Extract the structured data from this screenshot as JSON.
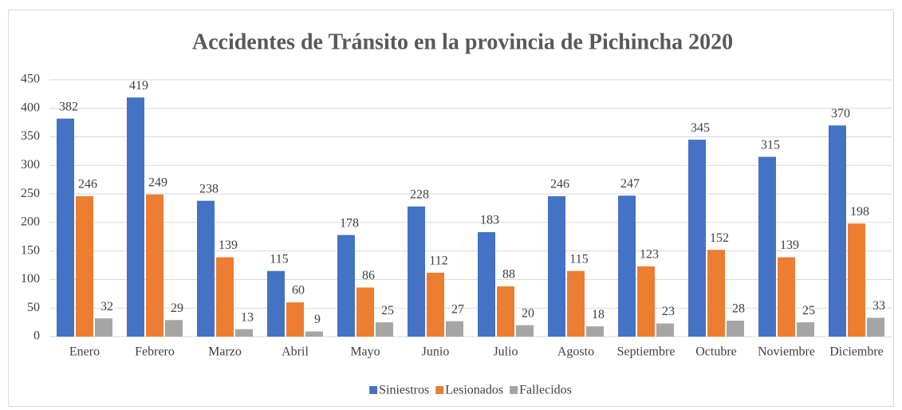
{
  "chart_data": {
    "type": "bar",
    "title": "Accidentes de Tránsito en la provincia de Pichincha 2020",
    "categories": [
      "Enero",
      "Febrero",
      "Marzo",
      "Abril",
      "Mayo",
      "Junio",
      "Julio",
      "Agosto",
      "Septiembre",
      "Octubre",
      "Noviembre",
      "Diciembre"
    ],
    "series": [
      {
        "name": "Siniestros",
        "color": "#4472c4",
        "values": [
          382,
          419,
          238,
          115,
          178,
          228,
          183,
          246,
          247,
          345,
          315,
          370
        ]
      },
      {
        "name": "Lesionados",
        "color": "#ed7d31",
        "values": [
          246,
          249,
          139,
          60,
          86,
          112,
          88,
          115,
          123,
          152,
          139,
          198
        ]
      },
      {
        "name": "Fallecidos",
        "color": "#a5a5a5",
        "values": [
          32,
          29,
          13,
          9,
          25,
          27,
          20,
          18,
          23,
          28,
          25,
          33
        ]
      }
    ],
    "ylim": [
      0,
      450
    ],
    "yticks": [
      0,
      50,
      100,
      150,
      200,
      250,
      300,
      350,
      400,
      450
    ],
    "grid": true,
    "legend": "bottom"
  }
}
